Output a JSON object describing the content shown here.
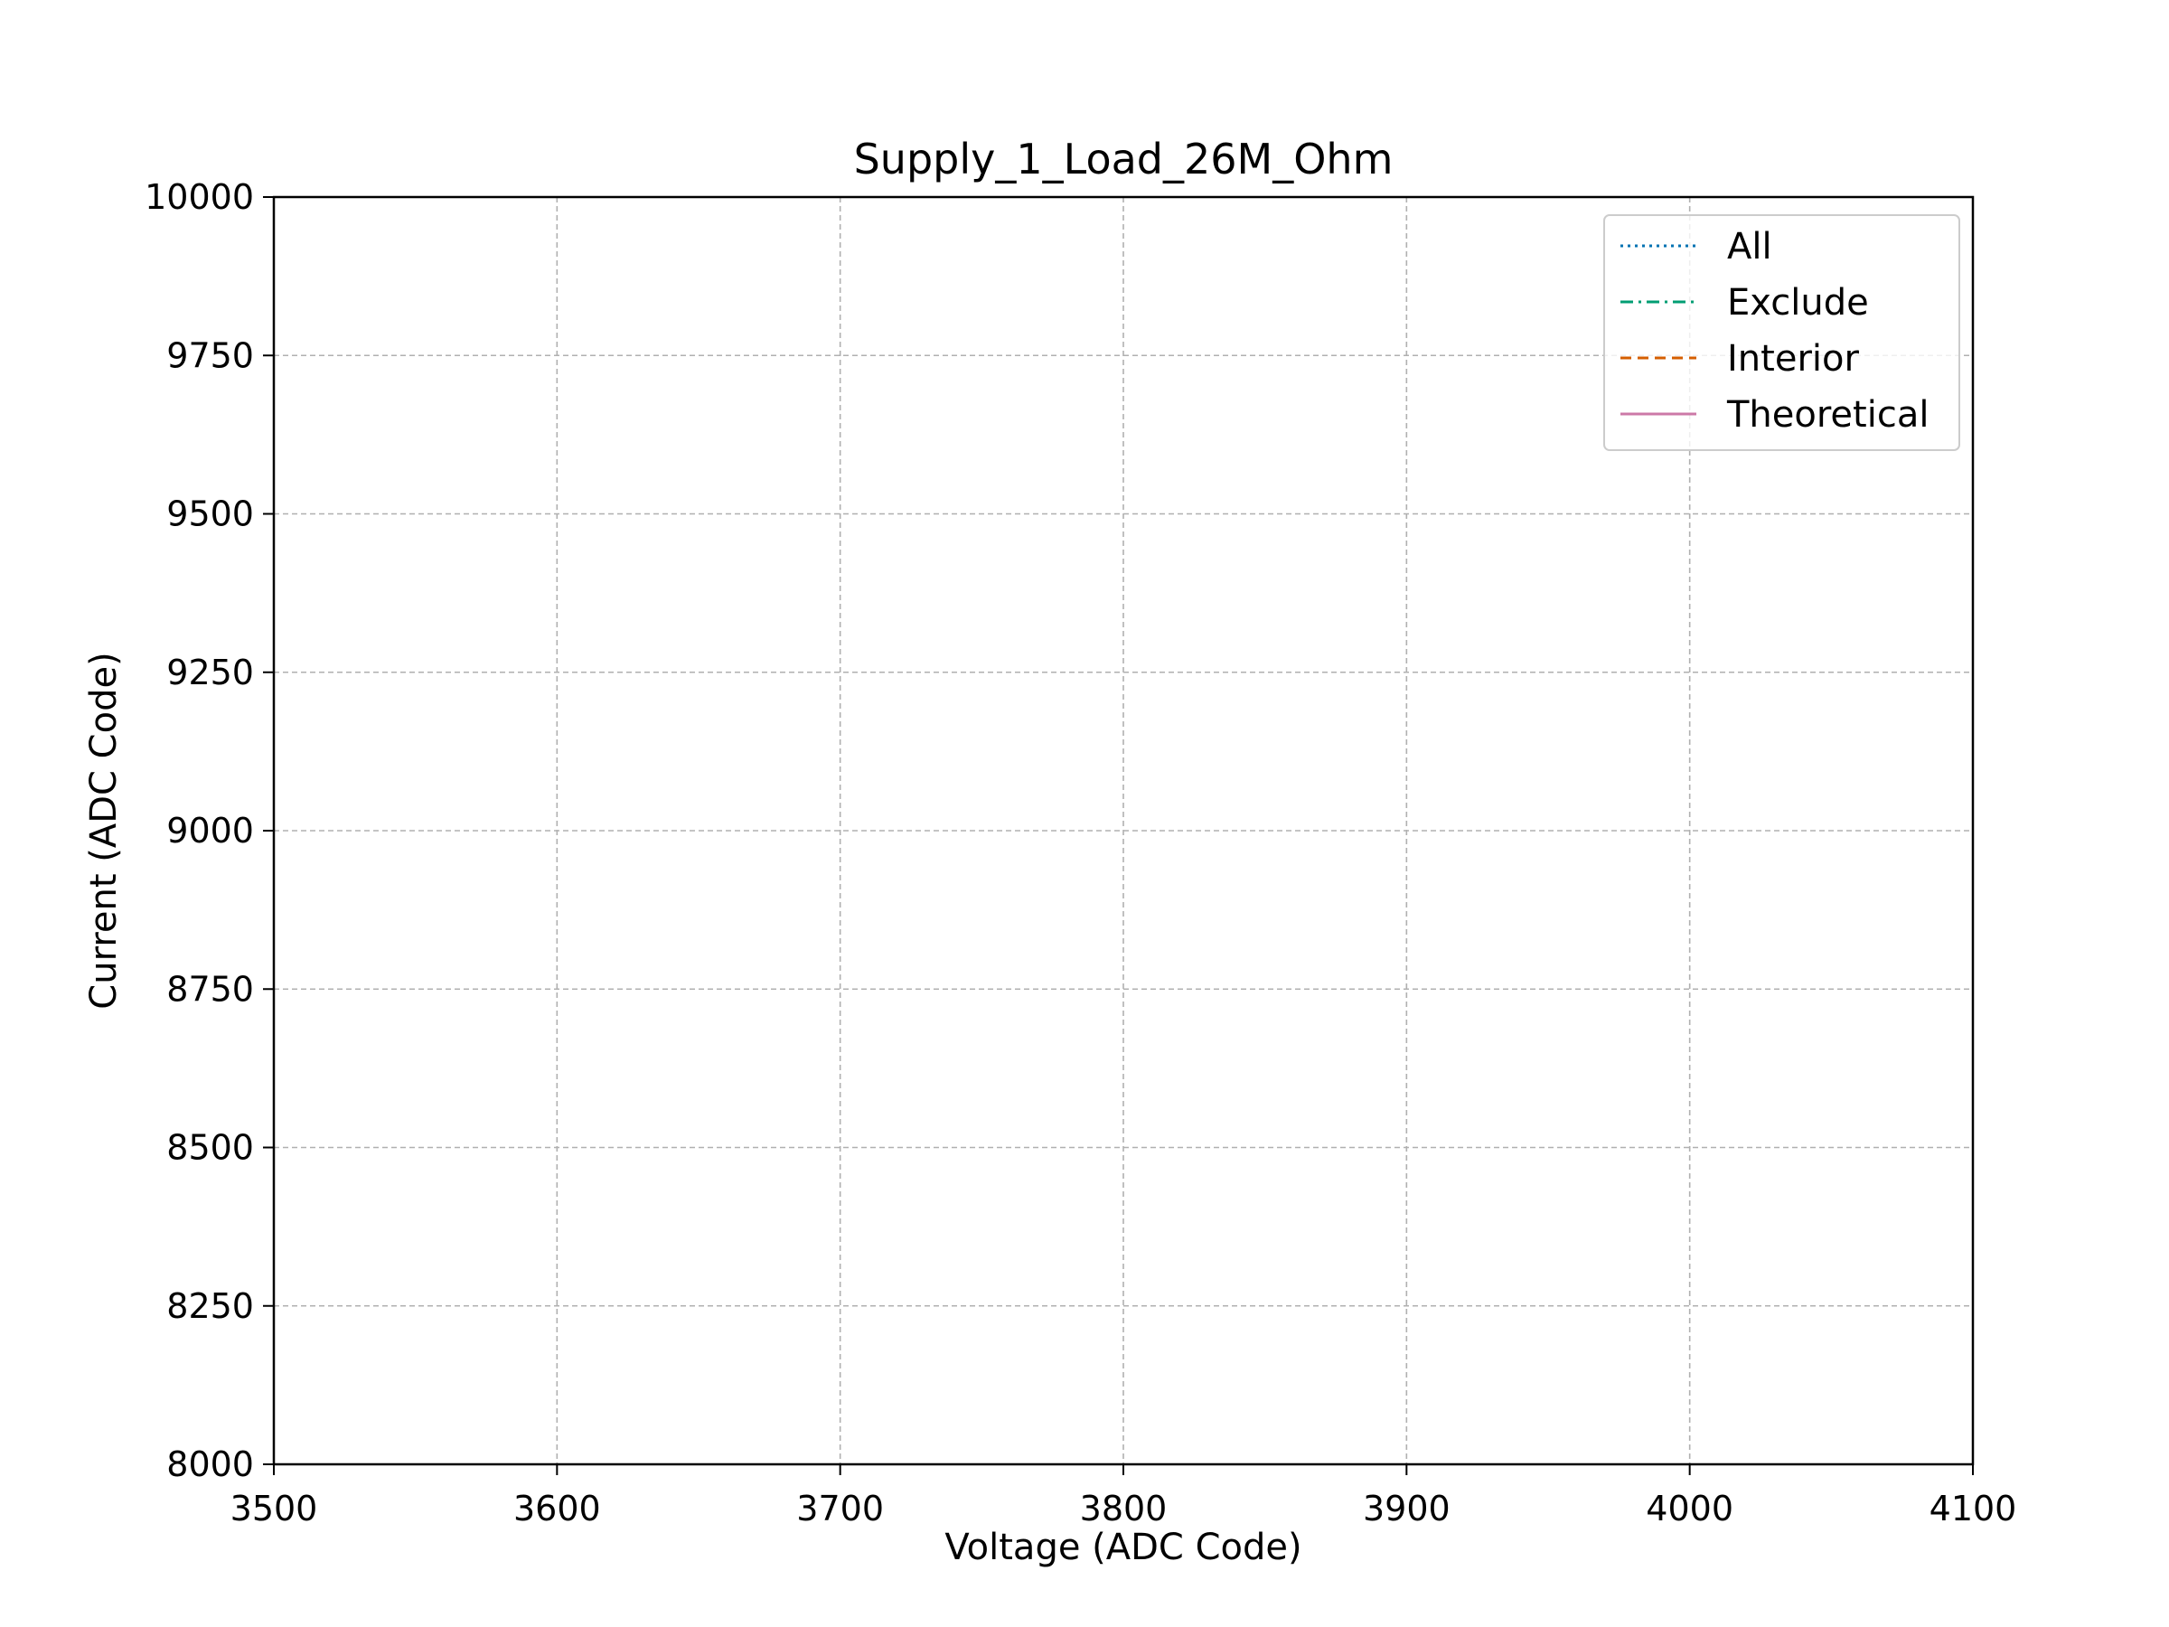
{
  "chart_data": {
    "type": "line",
    "title": "Supply_1_Load_26M_Ohm",
    "xlabel": "Voltage (ADC Code)",
    "ylabel": "Current (ADC Code)",
    "xlim": [
      3500,
      4100
    ],
    "ylim": [
      8000,
      10000
    ],
    "xticks": [
      3500,
      3600,
      3700,
      3800,
      3900,
      4000,
      4100
    ],
    "yticks": [
      8000,
      8250,
      8500,
      8750,
      9000,
      9250,
      9500,
      9750,
      10000
    ],
    "xtick_labels": [
      "3500",
      "3600",
      "3700",
      "3800",
      "3900",
      "4000",
      "4100"
    ],
    "ytick_labels": [
      "8000",
      "8250",
      "8500",
      "8750",
      "9000",
      "9250",
      "9500",
      "9750",
      "10000"
    ],
    "grid": true,
    "legend_position": "top-right",
    "series": [
      {
        "name": "All",
        "color": "#0072B2",
        "linestyle": "dotted",
        "x": [],
        "y": []
      },
      {
        "name": "Exclude",
        "color": "#009E73",
        "linestyle": "dashdot",
        "x": [],
        "y": []
      },
      {
        "name": "Interior",
        "color": "#D55E00",
        "linestyle": "dashed",
        "x": [],
        "y": []
      },
      {
        "name": "Theoretical",
        "color": "#CC79A7",
        "linestyle": "solid",
        "x": [],
        "y": []
      }
    ]
  }
}
